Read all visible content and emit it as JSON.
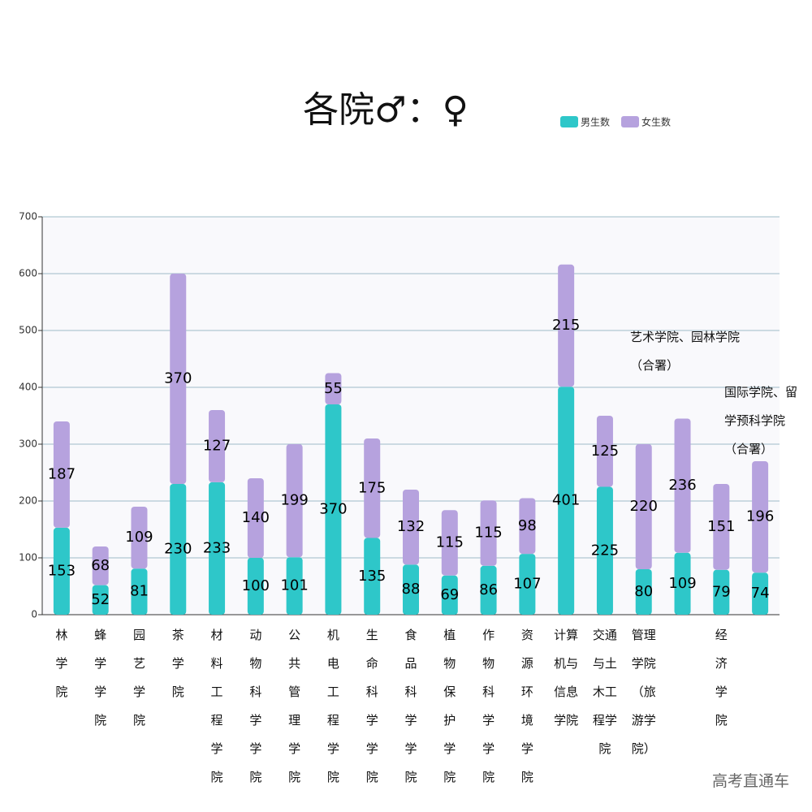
{
  "chart_data": {
    "type": "stacked-bar",
    "title": "各院♂：♀",
    "categories": [
      "林学院",
      "蜂学学院",
      "园艺学院",
      "茶学院",
      "材料工程学院",
      "动物科学学院",
      "公共管理学院",
      "机电工程学院",
      "生命科学学院",
      "食品科学学院",
      "植物保护学院",
      "作物科学学院",
      "资源环境学院",
      "计算机与信息学院",
      "交通与土木工程学院",
      "管理学院（旅游学院）",
      "艺术学院、园林学院（合署）",
      "经济学院",
      "国际学院、留学预科学院（合署）"
    ],
    "series": [
      {
        "name": "男生数",
        "color": "#2ec7c9",
        "values": [
          153,
          52,
          81,
          230,
          233,
          100,
          101,
          370,
          135,
          88,
          69,
          86,
          107,
          401,
          225,
          80,
          109,
          79,
          74
        ]
      },
      {
        "name": "女生数",
        "color": "#b6a2de",
        "values": [
          187,
          68,
          109,
          370,
          127,
          140,
          199,
          55,
          175,
          132,
          115,
          115,
          98,
          215,
          125,
          220,
          236,
          151,
          196
        ]
      }
    ],
    "ylim": [
      0,
      700
    ],
    "yticks": [
      0,
      100,
      200,
      300,
      400,
      500,
      600,
      700
    ],
    "grid": true,
    "legend": "top-right",
    "watermark": "高考直通车"
  }
}
